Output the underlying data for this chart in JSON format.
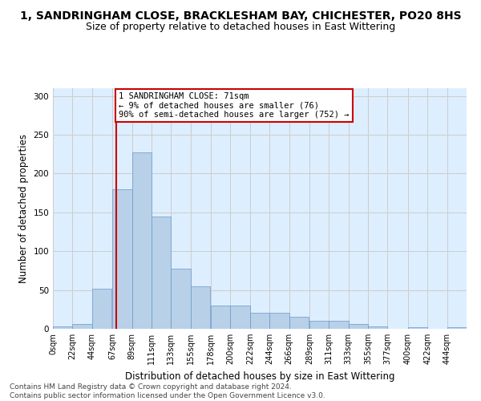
{
  "title": "1, SANDRINGHAM CLOSE, BRACKLESHAM BAY, CHICHESTER, PO20 8HS",
  "subtitle": "Size of property relative to detached houses in East Wittering",
  "xlabel": "Distribution of detached houses by size in East Wittering",
  "ylabel": "Number of detached properties",
  "footer_line1": "Contains HM Land Registry data © Crown copyright and database right 2024.",
  "footer_line2": "Contains public sector information licensed under the Open Government Licence v3.0.",
  "bar_values": [
    3,
    6,
    52,
    180,
    227,
    145,
    77,
    55,
    30,
    30,
    21,
    21,
    15,
    10,
    10,
    6,
    3,
    0,
    2,
    0,
    2
  ],
  "bin_edges": [
    0,
    22,
    44,
    67,
    89,
    111,
    133,
    155,
    178,
    200,
    222,
    244,
    266,
    289,
    311,
    333,
    355,
    377,
    400,
    422,
    444
  ],
  "tick_labels": [
    "0sqm",
    "22sqm",
    "44sqm",
    "67sqm",
    "89sqm",
    "111sqm",
    "133sqm",
    "155sqm",
    "178sqm",
    "200sqm",
    "222sqm",
    "244sqm",
    "266sqm",
    "289sqm",
    "311sqm",
    "333sqm",
    "355sqm",
    "377sqm",
    "400sqm",
    "422sqm",
    "444sqm"
  ],
  "bar_color": "#B8D0E8",
  "bar_edge_color": "#6699CC",
  "bar_edge_width": 0.5,
  "red_line_x": 71,
  "annotation_text": "1 SANDRINGHAM CLOSE: 71sqm\n← 9% of detached houses are smaller (76)\n90% of semi-detached houses are larger (752) →",
  "annotation_box_color": "#ffffff",
  "annotation_box_edge": "#cc0000",
  "red_line_color": "#cc0000",
  "ylim": [
    0,
    310
  ],
  "yticks": [
    0,
    50,
    100,
    150,
    200,
    250,
    300
  ],
  "grid_color": "#cccccc",
  "bg_color": "#ddeeff",
  "fig_bg_color": "#ffffff",
  "title_fontsize": 10,
  "subtitle_fontsize": 9,
  "axis_label_fontsize": 8.5,
  "tick_fontsize": 7,
  "footer_fontsize": 6.5
}
